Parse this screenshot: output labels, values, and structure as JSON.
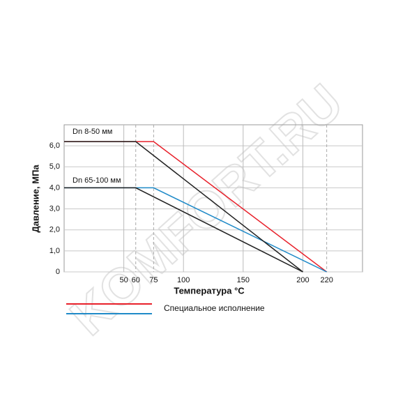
{
  "chart_data": {
    "type": "line",
    "watermark": "KOMFORT.RU",
    "xlabel": "Температура °C",
    "ylabel": "Давление, МПа",
    "xlim": [
      0,
      250
    ],
    "ylim": [
      0,
      7
    ],
    "xticks": [
      50,
      60,
      75,
      100,
      150,
      200,
      220
    ],
    "yticks": [
      0,
      {
        "value": 1,
        "label": "1,0"
      },
      {
        "value": 2,
        "label": "2,0"
      },
      {
        "value": 3,
        "label": "3,0"
      },
      {
        "value": 4,
        "label": "4,0"
      },
      {
        "value": 5,
        "label": "5,0"
      },
      {
        "value": 6,
        "label": "6,0"
      }
    ],
    "grid": true,
    "annotations": [
      "Dn 8-50 мм",
      "Dn 65-100 мм"
    ],
    "series": [
      {
        "color": "#e8202a",
        "x": [
          0,
          75,
          220
        ],
        "values": [
          6.2,
          6.2,
          0
        ]
      },
      {
        "color": "#1f8ac8",
        "x": [
          0,
          75,
          220
        ],
        "values": [
          4,
          4,
          0
        ]
      },
      {
        "color": "#222222",
        "x": [
          0,
          60,
          200
        ],
        "values": [
          6.2,
          6.2,
          0
        ]
      },
      {
        "color": "#222222",
        "x": [
          0,
          60,
          200
        ],
        "values": [
          4,
          4,
          0
        ]
      }
    ],
    "legend": {
      "label": "Специальное исполнение",
      "colors": [
        "#e8202a",
        "#1f8ac8"
      ]
    }
  }
}
